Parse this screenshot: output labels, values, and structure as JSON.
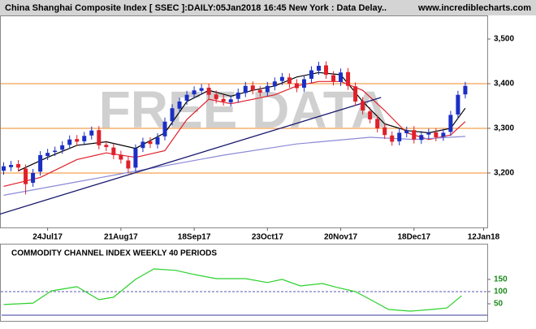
{
  "chart_data": [
    {
      "type": "candlestick",
      "title": "China Shanghai Composite Index [ SSEC ]:DAILY:05Jan2018 16:45 New York : Data Delay..",
      "source": "www.incrediblecharts.com",
      "watermark": "FREE DATA",
      "x": [
        0,
        2,
        4,
        6,
        8,
        10,
        12,
        14,
        16,
        18,
        20,
        22,
        24,
        26,
        28,
        30,
        32,
        34,
        36,
        38,
        40,
        42,
        44,
        46,
        48,
        50,
        52,
        54,
        56,
        58,
        60,
        62,
        64,
        66,
        68,
        70,
        72,
        74,
        76,
        78,
        80,
        82,
        84,
        86,
        88,
        90,
        92,
        94,
        96,
        98,
        100,
        102,
        104,
        106,
        108,
        110,
        112,
        114,
        116,
        118,
        120,
        122,
        124,
        126
      ],
      "open": [
        3205,
        3213,
        3220,
        3210,
        3178,
        3203,
        3238,
        3247,
        3252,
        3263,
        3276,
        3271,
        3284,
        3296,
        3263,
        3257,
        3241,
        3228,
        3212,
        3256,
        3271,
        3264,
        3282,
        3316,
        3344,
        3362,
        3376,
        3384,
        3391,
        3376,
        3366,
        3358,
        3366,
        3379,
        3396,
        3386,
        3381,
        3394,
        3406,
        3414,
        3401,
        3391,
        3411,
        3429,
        3441,
        3419,
        3404,
        3426,
        3394,
        3361,
        3338,
        3321,
        3302,
        3284,
        3271,
        3289,
        3296,
        3274,
        3286,
        3291,
        3281,
        3292,
        3331,
        3376
      ],
      "high": [
        3224,
        3227,
        3229,
        3219,
        3209,
        3249,
        3254,
        3259,
        3271,
        3284,
        3285,
        3292,
        3304,
        3305,
        3272,
        3266,
        3250,
        3237,
        3264,
        3279,
        3280,
        3289,
        3324,
        3354,
        3369,
        3384,
        3394,
        3399,
        3400,
        3385,
        3375,
        3374,
        3389,
        3404,
        3405,
        3395,
        3404,
        3414,
        3424,
        3423,
        3410,
        3419,
        3439,
        3449,
        3450,
        3428,
        3434,
        3435,
        3403,
        3370,
        3347,
        3330,
        3311,
        3293,
        3299,
        3304,
        3305,
        3294,
        3299,
        3300,
        3299,
        3339,
        3384,
        3404
      ],
      "low": [
        3196,
        3204,
        3203,
        3152,
        3169,
        3194,
        3229,
        3238,
        3243,
        3254,
        3261,
        3262,
        3275,
        3253,
        3249,
        3231,
        3221,
        3201,
        3203,
        3247,
        3256,
        3255,
        3273,
        3307,
        3335,
        3353,
        3367,
        3375,
        3366,
        3356,
        3351,
        3349,
        3357,
        3370,
        3376,
        3371,
        3372,
        3385,
        3397,
        3391,
        3381,
        3382,
        3402,
        3420,
        3411,
        3396,
        3395,
        3386,
        3351,
        3331,
        3311,
        3291,
        3276,
        3261,
        3262,
        3280,
        3266,
        3265,
        3277,
        3271,
        3272,
        3283,
        3322,
        3367
      ],
      "close": [
        3215,
        3218,
        3212,
        3175,
        3200,
        3240,
        3245,
        3250,
        3262,
        3275,
        3270,
        3283,
        3295,
        3262,
        3258,
        3240,
        3230,
        3210,
        3255,
        3270,
        3265,
        3280,
        3315,
        3345,
        3360,
        3375,
        3385,
        3390,
        3375,
        3365,
        3360,
        3365,
        3380,
        3395,
        3385,
        3380,
        3395,
        3405,
        3415,
        3400,
        3390,
        3410,
        3430,
        3440,
        3420,
        3405,
        3425,
        3395,
        3360,
        3340,
        3320,
        3300,
        3285,
        3270,
        3290,
        3295,
        3275,
        3285,
        3290,
        3280,
        3290,
        3330,
        3375,
        3395
      ],
      "up_color": "#1a2fc4",
      "down_color": "#e0202a",
      "lines": [
        {
          "color": "#000000",
          "x": [
            4,
            12,
            20,
            28,
            36,
            44,
            50,
            56,
            62,
            68,
            74,
            80,
            86,
            92,
            98,
            104,
            110,
            116,
            122,
            126
          ],
          "values": [
            3205,
            3235,
            3262,
            3270,
            3255,
            3290,
            3360,
            3385,
            3372,
            3385,
            3395,
            3415,
            3425,
            3420,
            3360,
            3310,
            3295,
            3290,
            3300,
            3345
          ]
        },
        {
          "color": "#e0202a",
          "x": [
            0,
            10,
            20,
            28,
            36,
            44,
            50,
            56,
            62,
            68,
            74,
            80,
            86,
            92,
            98,
            104,
            110,
            116,
            122,
            126
          ],
          "values": [
            3170,
            3190,
            3230,
            3245,
            3235,
            3250,
            3320,
            3365,
            3355,
            3365,
            3375,
            3395,
            3405,
            3405,
            3385,
            3340,
            3290,
            3275,
            3285,
            3315
          ]
        },
        {
          "color": "#8a8ad8",
          "x": [
            0,
            20,
            40,
            60,
            80,
            100,
            112,
            126
          ],
          "values": [
            3150,
            3180,
            3210,
            3240,
            3265,
            3280,
            3275,
            3282
          ]
        }
      ],
      "trendline": {
        "color": "#1a1a6e",
        "x": [
          -1,
          103
        ],
        "values": [
          3108,
          3369
        ]
      },
      "hlines": [
        3200,
        3300,
        3400
      ],
      "hline_color": "#f08a24",
      "xlim": [
        -1,
        132
      ],
      "ylim": [
        3078,
        3551
      ],
      "xticks": [
        {
          "value": 12,
          "label": "24Jul17"
        },
        {
          "value": 32,
          "label": "21Aug17"
        },
        {
          "value": 52,
          "label": "18Sep17"
        },
        {
          "value": 72,
          "label": "23Oct17"
        },
        {
          "value": 92,
          "label": "20Nov17"
        },
        {
          "value": 112,
          "label": "18Dec17"
        },
        {
          "value": 131,
          "label": "12Jan18"
        }
      ],
      "yticks": [
        {
          "value": 3200,
          "label": "3,200"
        },
        {
          "value": 3300,
          "label": "3,300"
        },
        {
          "value": 3400,
          "label": "3,400"
        },
        {
          "value": 3500,
          "label": "3,500"
        }
      ]
    },
    {
      "type": "line",
      "title": "COMMODITY CHANNEL INDEX WEEKLY 40 PERIODS",
      "x": [
        0,
        8,
        13,
        20,
        26,
        30,
        36,
        41,
        47,
        52,
        58,
        66,
        72,
        76,
        81,
        87,
        91,
        96,
        101,
        105,
        111,
        117,
        121,
        125
      ],
      "values": [
        47,
        53,
        103,
        120,
        67,
        77,
        150,
        193,
        187,
        170,
        153,
        153,
        137,
        150,
        123,
        133,
        117,
        100,
        60,
        27,
        20,
        27,
        33,
        83
      ],
      "color": "#2bd12b",
      "reference": 100,
      "xlim": [
        -1,
        132
      ],
      "ylim": [
        0,
        223
      ],
      "yticks": [
        50,
        100,
        150
      ]
    }
  ]
}
